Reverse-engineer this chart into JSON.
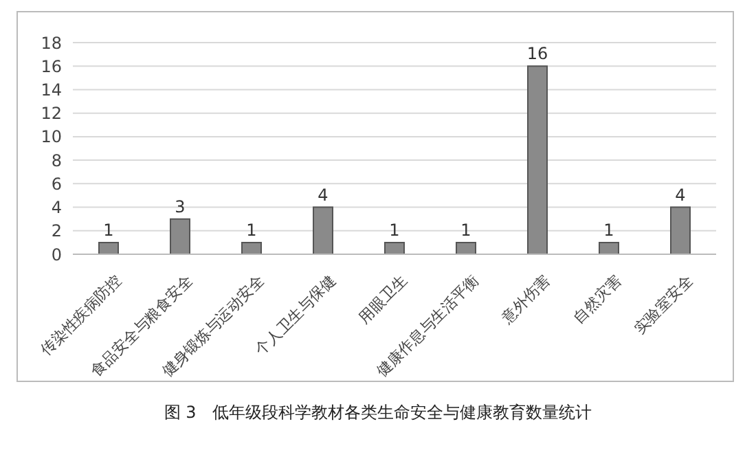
{
  "chart_data": {
    "type": "bar",
    "categories": [
      "传染性疾病防控",
      "食品安全与粮食安全",
      "健身锻炼与运动安全",
      "个人卫生与保健",
      "用眼卫生",
      "健康作息与生活平衡",
      "意外伤害",
      "自然灾害",
      "实验室安全"
    ],
    "values": [
      1,
      3,
      1,
      4,
      1,
      1,
      16,
      1,
      4
    ],
    "color": "#8a8a8a",
    "ylim": [
      0,
      18
    ],
    "yticks": [
      0,
      2,
      4,
      6,
      8,
      10,
      12,
      14,
      16,
      18
    ],
    "grid": "y",
    "data_labels": true,
    "annotations": [
      "图 3　低年级段科学教材各类生命安全与健康教育数量统计"
    ]
  }
}
